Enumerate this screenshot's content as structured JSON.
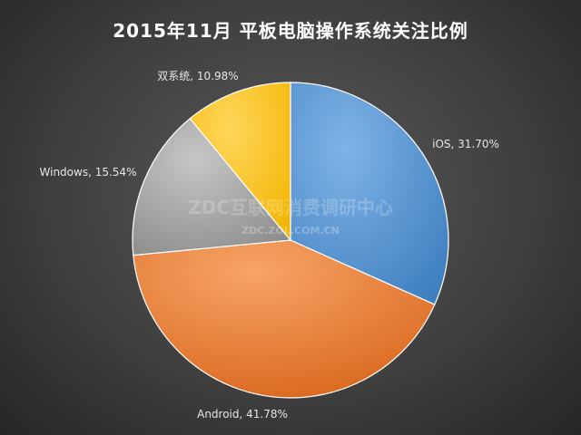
{
  "chart_data": {
    "type": "pie",
    "title": "2015年11月  平板电脑操作系统关注比例",
    "start_angle_deg": 0,
    "direction": "clockwise",
    "legend": "none",
    "slices": [
      {
        "name": "iOS",
        "value": 31.7,
        "label": "iOS, 31.70%",
        "color": "#5b9bd5",
        "label_pos": "right"
      },
      {
        "name": "Android",
        "value": 41.78,
        "label": "Android, 41.78%",
        "color": "#ed7d31",
        "label_pos": "bottom"
      },
      {
        "name": "Windows",
        "value": 15.54,
        "label": "Windows, 15.54%",
        "color": "#a5a5a5",
        "label_pos": "left"
      },
      {
        "name": "双系统",
        "value": 10.98,
        "label": "双系统, 10.98%",
        "color": "#ffc000",
        "label_pos": "top-left"
      }
    ]
  },
  "watermark": {
    "main": "ZDC互联网消费调研中心",
    "sub": "ZDC.ZOL.COM.CN"
  }
}
